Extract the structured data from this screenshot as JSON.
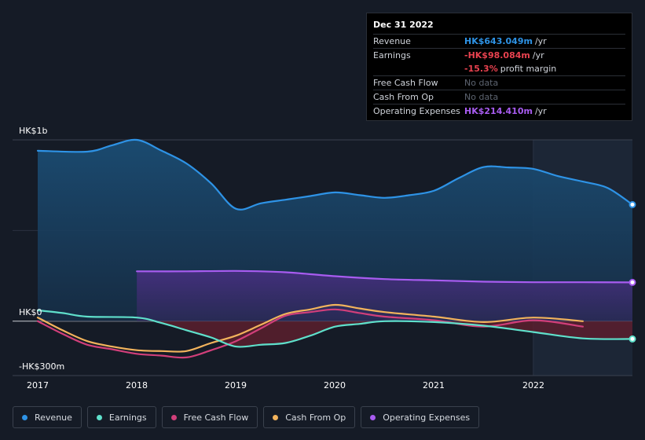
{
  "tooltip": {
    "date": "Dec 31 2022",
    "rows": [
      {
        "label": "Revenue",
        "value": "HK$643.049m",
        "unit": "/yr",
        "color": "#2e93e6"
      },
      {
        "label": "Earnings",
        "value": "-HK$98.084m",
        "unit": "/yr",
        "color": "#e8424f"
      },
      {
        "label": "",
        "value": "-15.3%",
        "unit": "profit margin",
        "color": "#e8424f"
      },
      {
        "label": "Free Cash Flow",
        "value": "No data",
        "unit": "",
        "color": "#5d6470"
      },
      {
        "label": "Cash From Op",
        "value": "No data",
        "unit": "",
        "color": "#5d6470"
      },
      {
        "label": "Operating Expenses",
        "value": "HK$214.410m",
        "unit": "/yr",
        "color": "#a85cf0"
      }
    ]
  },
  "chart_data": {
    "type": "area",
    "title": "",
    "xlabel": "",
    "ylabel": "",
    "unit": "HK$ millions",
    "y_tick_labels": [
      "HK$1b",
      "HK$0",
      "-HK$300m"
    ],
    "y_ticks": [
      1000,
      0,
      -300
    ],
    "ylim": [
      -300,
      1000
    ],
    "xlim": [
      2017.0,
      2023.0
    ],
    "x_tick_labels": [
      "2017",
      "2018",
      "2019",
      "2020",
      "2021",
      "2022"
    ],
    "x_ticks": [
      2017,
      2018,
      2019,
      2020,
      2021,
      2022
    ],
    "highlight_from": 2022.0,
    "series": [
      {
        "name": "Revenue",
        "color": "#2e93e6",
        "fill": true,
        "x": [
          2017.0,
          2017.5,
          2017.75,
          2018.0,
          2018.25,
          2018.5,
          2018.75,
          2019.0,
          2019.25,
          2019.5,
          2019.75,
          2020.0,
          2020.25,
          2020.5,
          2020.75,
          2021.0,
          2021.25,
          2021.5,
          2021.75,
          2022.0,
          2022.25,
          2022.5,
          2022.75,
          2023.0
        ],
        "values": [
          940,
          935,
          970,
          1000,
          940,
          870,
          760,
          620,
          650,
          670,
          690,
          710,
          695,
          680,
          695,
          720,
          790,
          850,
          848,
          840,
          800,
          770,
          735,
          643
        ]
      },
      {
        "name": "Earnings",
        "color": "#5fe0cb",
        "fill": true,
        "x": [
          2017.0,
          2017.25,
          2017.5,
          2018.0,
          2018.25,
          2018.5,
          2018.75,
          2019.0,
          2019.25,
          2019.5,
          2019.75,
          2020.0,
          2020.25,
          2020.5,
          2021.0,
          2021.5,
          2022.0,
          2022.5,
          2023.0
        ],
        "values": [
          60,
          45,
          25,
          20,
          -10,
          -50,
          -90,
          -140,
          -130,
          -120,
          -80,
          -30,
          -15,
          0,
          -5,
          -25,
          -60,
          -95,
          -98
        ]
      },
      {
        "name": "Free Cash Flow",
        "color": "#d13f7a",
        "fill": false,
        "x": [
          2017.0,
          2017.25,
          2017.5,
          2017.75,
          2018.0,
          2018.25,
          2018.5,
          2018.75,
          2019.0,
          2019.25,
          2019.5,
          2019.75,
          2020.0,
          2020.25,
          2020.5,
          2021.0,
          2021.5,
          2022.0,
          2022.5
        ],
        "values": [
          0,
          -70,
          -130,
          -155,
          -180,
          -190,
          -200,
          -160,
          -110,
          -40,
          30,
          50,
          65,
          45,
          25,
          5,
          -30,
          5,
          -30
        ]
      },
      {
        "name": "Cash From Op",
        "color": "#f2b35c",
        "fill": false,
        "x": [
          2017.0,
          2017.25,
          2017.5,
          2017.75,
          2018.0,
          2018.25,
          2018.5,
          2018.75,
          2019.0,
          2019.25,
          2019.5,
          2019.75,
          2020.0,
          2020.25,
          2020.5,
          2021.0,
          2021.5,
          2022.0,
          2022.5
        ],
        "values": [
          20,
          -50,
          -110,
          -140,
          -160,
          -165,
          -165,
          -120,
          -80,
          -20,
          40,
          65,
          90,
          70,
          50,
          25,
          -5,
          20,
          0
        ]
      },
      {
        "name": "Operating Expenses",
        "color": "#a85cf0",
        "fill": true,
        "x": [
          2018.0,
          2018.5,
          2019.0,
          2019.5,
          2020.0,
          2020.5,
          2021.0,
          2021.5,
          2022.0,
          2022.5,
          2023.0
        ],
        "values": [
          275,
          275,
          277,
          270,
          248,
          232,
          225,
          218,
          215,
          215,
          214
        ]
      }
    ]
  },
  "legend": [
    {
      "label": "Revenue",
      "color": "#2e93e6"
    },
    {
      "label": "Earnings",
      "color": "#5fe0cb"
    },
    {
      "label": "Free Cash Flow",
      "color": "#d13f7a"
    },
    {
      "label": "Cash From Op",
      "color": "#f2b35c"
    },
    {
      "label": "Operating Expenses",
      "color": "#a85cf0"
    }
  ]
}
